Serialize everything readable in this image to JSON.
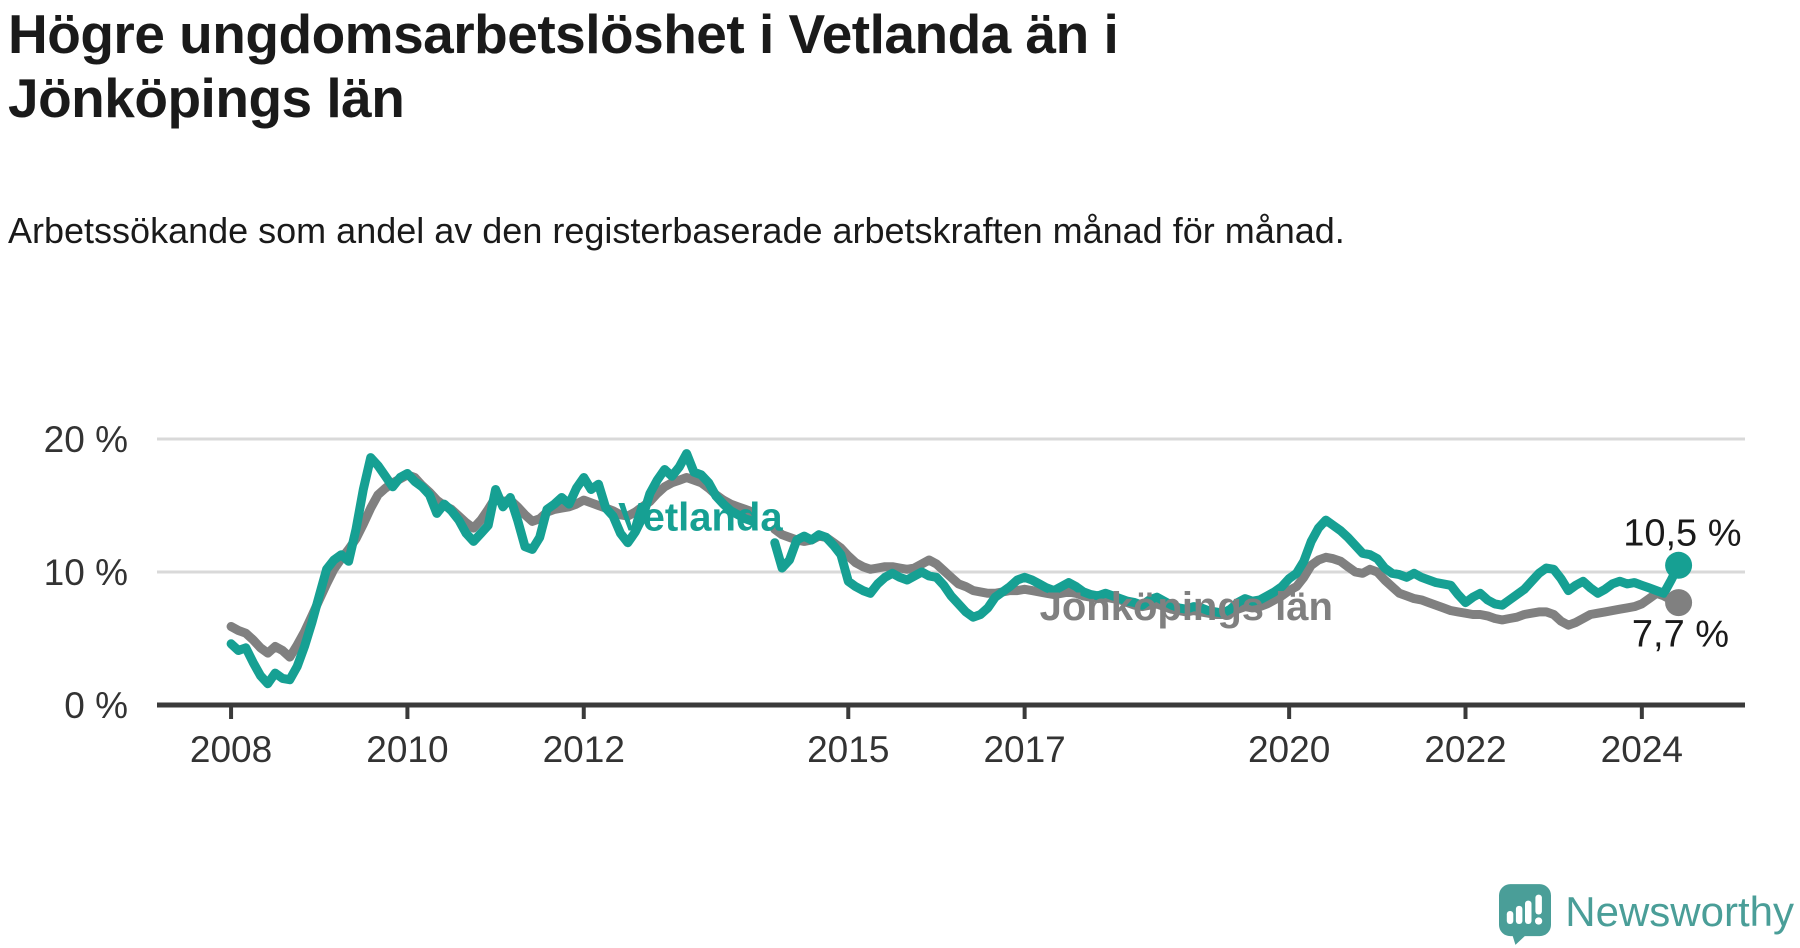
{
  "header": {
    "title": "Högre ungdomsarbetslöshet i Vetlanda än i Jönköpings län",
    "subtitle": "Arbetssökande som andel av den registerbaserade arbetskraften månad för månad."
  },
  "footer": {
    "brand": "Newsworthy"
  },
  "colors": {
    "vetlanda": "#16a093",
    "jonkoping": "#808080",
    "brand_teal": "#4a9e98",
    "text_dark": "#1a1a1a",
    "tick_text": "#333333",
    "gridline": "#d9d9d9",
    "axis": "#3a3a3a"
  },
  "chart_data": {
    "type": "line",
    "title": "Högre ungdomsarbetslöshet i Vetlanda än i Jönköpings län",
    "subtitle": "Arbetssökande som andel av den registerbaserade arbetskraften månad för månad.",
    "frequency": "monthly",
    "x_start": "2008-01",
    "x_end": "2024-06",
    "gap_months": [
      "2014-01",
      "2014-02"
    ],
    "xlim": [
      2007.16,
      2025.17
    ],
    "ylim": [
      0,
      21.8
    ],
    "grid": "horizontal",
    "legend_position": "inline-labels",
    "xticks": [
      2008,
      2010,
      2012,
      2015,
      2017,
      2020,
      2022,
      2024
    ],
    "yticks": [
      {
        "value": 0,
        "label": "0 %"
      },
      {
        "value": 10,
        "label": "10 %"
      },
      {
        "value": 20,
        "label": "20 %"
      }
    ],
    "series": [
      {
        "name": "Vetlanda",
        "color": "#16a093",
        "end_value": 10.5,
        "end_label": "10,5 %",
        "values": [
          4.6,
          4.1,
          4.3,
          3.2,
          2.2,
          1.6,
          2.4,
          2.0,
          1.9,
          2.9,
          4.4,
          6.2,
          8.2,
          10.2,
          10.9,
          11.3,
          10.8,
          13.2,
          16.2,
          18.6,
          18.0,
          17.2,
          16.4,
          17.1,
          17.4,
          16.8,
          16.4,
          15.8,
          14.4,
          15.1,
          14.6,
          13.9,
          12.9,
          12.3,
          12.9,
          13.5,
          16.2,
          14.9,
          15.6,
          13.9,
          11.9,
          11.7,
          12.6,
          14.7,
          15.1,
          15.6,
          15.1,
          16.3,
          17.1,
          16.2,
          16.6,
          14.8,
          14.2,
          12.9,
          12.2,
          13.0,
          14.1,
          15.9,
          16.9,
          17.7,
          17.2,
          17.9,
          18.9,
          17.5,
          17.3,
          16.7,
          15.7,
          15.1,
          14.6,
          14.3,
          14.0,
          13.8,
          null,
          null,
          12.2,
          10.3,
          10.9,
          12.4,
          12.7,
          12.4,
          12.8,
          12.6,
          12.0,
          11.3,
          9.3,
          8.9,
          8.6,
          8.4,
          9.1,
          9.6,
          9.9,
          9.6,
          9.4,
          9.7,
          10.0,
          9.7,
          9.6,
          9.0,
          8.2,
          7.6,
          7.0,
          6.6,
          6.8,
          7.3,
          8.1,
          8.5,
          8.9,
          9.4,
          9.6,
          9.4,
          9.1,
          8.8,
          8.6,
          8.9,
          9.2,
          8.9,
          8.5,
          8.3,
          8.2,
          8.4,
          8.2,
          8.0,
          7.8,
          7.7,
          7.5,
          7.9,
          8.1,
          7.8,
          7.5,
          7.3,
          7.2,
          7.4,
          7.3,
          7.1,
          7.0,
          6.9,
          7.2,
          7.7,
          8.0,
          7.8,
          7.9,
          8.2,
          8.5,
          8.9,
          9.5,
          9.9,
          10.8,
          12.3,
          13.3,
          13.9,
          13.5,
          13.1,
          12.6,
          12.0,
          11.4,
          11.3,
          11.0,
          10.3,
          9.9,
          9.8,
          9.6,
          9.9,
          9.6,
          9.4,
          9.2,
          9.1,
          9.0,
          8.3,
          7.7,
          8.1,
          8.4,
          7.9,
          7.6,
          7.5,
          7.9,
          8.3,
          8.7,
          9.3,
          9.9,
          10.3,
          10.2,
          9.5,
          8.6,
          9.0,
          9.3,
          8.8,
          8.4,
          8.7,
          9.1,
          9.3,
          9.1,
          9.2,
          9.0,
          8.8,
          8.6,
          8.4,
          9.4,
          10.5
        ]
      },
      {
        "name": "Jönköpings län",
        "color": "#808080",
        "end_value": 7.7,
        "end_label": "7,7 %",
        "values": [
          5.9,
          5.6,
          5.4,
          4.9,
          4.3,
          3.9,
          4.4,
          4.1,
          3.6,
          4.5,
          5.5,
          6.7,
          7.9,
          9.1,
          10.2,
          11.0,
          11.7,
          12.5,
          13.6,
          14.8,
          15.8,
          16.3,
          16.7,
          17.0,
          17.3,
          17.1,
          16.5,
          16.0,
          15.4,
          15.0,
          14.7,
          14.2,
          13.7,
          13.3,
          13.9,
          14.7,
          15.6,
          15.3,
          15.4,
          14.9,
          14.3,
          13.8,
          14.0,
          14.5,
          14.7,
          14.8,
          14.9,
          15.1,
          15.4,
          15.2,
          15.0,
          14.8,
          14.6,
          14.3,
          14.2,
          14.5,
          14.9,
          15.3,
          15.9,
          16.4,
          16.7,
          16.9,
          17.1,
          16.9,
          16.7,
          16.3,
          15.8,
          15.4,
          15.1,
          14.9,
          14.7,
          14.5,
          null,
          null,
          13.2,
          12.8,
          12.6,
          12.4,
          12.3,
          12.4,
          12.7,
          12.6,
          12.2,
          11.8,
          11.2,
          10.7,
          10.4,
          10.2,
          10.3,
          10.4,
          10.4,
          10.3,
          10.2,
          10.3,
          10.6,
          10.9,
          10.6,
          10.1,
          9.6,
          9.1,
          8.9,
          8.6,
          8.5,
          8.4,
          8.4,
          8.5,
          8.6,
          8.6,
          8.7,
          8.6,
          8.5,
          8.4,
          8.3,
          8.4,
          8.5,
          8.4,
          8.2,
          8.1,
          8.0,
          8.1,
          8.0,
          7.9,
          7.7,
          7.5,
          7.4,
          7.5,
          7.6,
          7.4,
          7.2,
          7.1,
          7.0,
          7.1,
          7.0,
          6.9,
          6.8,
          6.8,
          6.9,
          7.2,
          7.4,
          7.3,
          7.4,
          7.6,
          7.9,
          8.2,
          8.6,
          8.9,
          9.6,
          10.5,
          10.9,
          11.1,
          11.0,
          10.8,
          10.4,
          10.0,
          9.9,
          10.2,
          10.0,
          9.4,
          8.9,
          8.4,
          8.2,
          8.0,
          7.9,
          7.7,
          7.5,
          7.3,
          7.1,
          7.0,
          6.9,
          6.8,
          6.8,
          6.7,
          6.5,
          6.4,
          6.5,
          6.6,
          6.8,
          6.9,
          7.0,
          7.0,
          6.8,
          6.3,
          6.0,
          6.2,
          6.5,
          6.8,
          6.9,
          7.0,
          7.1,
          7.2,
          7.3,
          7.4,
          7.6,
          8.0,
          8.4,
          8.2,
          7.9,
          7.7
        ]
      }
    ],
    "annotations": [
      {
        "id": "label-vetlanda",
        "text": "Vetlanda",
        "year": 2012.39,
        "value": 13.1,
        "anchor": "start",
        "color": "#16a093",
        "size": 40,
        "bold": true
      },
      {
        "id": "label-jonkoping",
        "text": "Jönköpings län",
        "year": 2017.17,
        "value": 6.4,
        "anchor": "start",
        "color": "#808080",
        "size": 40,
        "bold": true
      },
      {
        "id": "end-label-vetlanda",
        "text": "10,5 %",
        "year": 2025.13,
        "value": 12.0,
        "anchor": "end",
        "color": "#1a1a1a",
        "size": 38,
        "bold": false
      },
      {
        "id": "end-label-jonkoping",
        "text": "7,7 %",
        "year": 2024.99,
        "value": 4.4,
        "anchor": "end",
        "color": "#1a1a1a",
        "size": 38,
        "bold": false
      }
    ]
  }
}
